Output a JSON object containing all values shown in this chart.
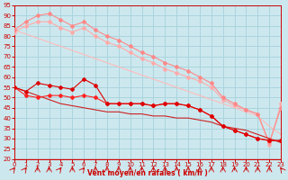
{
  "bg_color": "#cce8ee",
  "grid_color": "#aad4dd",
  "xlabel": "Vent moyen/en rafales ( km/h )",
  "xlabel_color": "#cc0000",
  "tick_color": "#cc0000",
  "xmin": 0,
  "xmax": 23,
  "ymin": 20,
  "ymax": 95,
  "xticks": [
    0,
    1,
    2,
    3,
    4,
    5,
    6,
    7,
    8,
    9,
    10,
    11,
    12,
    13,
    14,
    15,
    16,
    17,
    18,
    19,
    20,
    21,
    22,
    23
  ],
  "yticks": [
    20,
    25,
    30,
    35,
    40,
    45,
    50,
    55,
    60,
    65,
    70,
    75,
    80,
    85,
    90,
    95
  ],
  "line_light1_x": [
    0,
    1,
    2,
    3,
    4,
    5,
    6,
    7,
    8,
    9,
    10,
    11,
    12,
    13,
    14,
    15,
    16,
    17,
    18,
    19,
    20,
    21,
    22,
    23
  ],
  "line_light1_y": [
    83,
    87,
    90,
    91,
    88,
    85,
    87,
    83,
    80,
    78,
    75,
    72,
    70,
    67,
    65,
    63,
    60,
    57,
    50,
    47,
    44,
    42,
    28,
    45
  ],
  "line_light1_color": "#ff8888",
  "line_light2_x": [
    0,
    1,
    2,
    3,
    4,
    5,
    6,
    7,
    8,
    9,
    10,
    11,
    12,
    13,
    14,
    15,
    16,
    17,
    18,
    19,
    20,
    21,
    22,
    23
  ],
  "line_light2_y": [
    82,
    85,
    87,
    87,
    84,
    82,
    84,
    80,
    77,
    75,
    72,
    69,
    67,
    64,
    62,
    60,
    58,
    55,
    49,
    46,
    44,
    42,
    27,
    47
  ],
  "line_light2_color": "#ffaaaa",
  "line_trend1_x": [
    0,
    1,
    2,
    3,
    4,
    5,
    6,
    7,
    8,
    9,
    10,
    11,
    12,
    13,
    14,
    15,
    16,
    17,
    18,
    19,
    20,
    21,
    22,
    23
  ],
  "line_trend1_y": [
    83,
    81,
    79,
    77,
    75,
    73,
    71,
    69,
    67,
    65,
    63,
    61,
    59,
    57,
    55,
    53,
    51,
    49,
    47,
    45,
    43,
    41,
    36,
    32
  ],
  "line_trend1_color": "#ffbbbb",
  "line_trend2_x": [
    0,
    1,
    2,
    3,
    4,
    5,
    6,
    7,
    8,
    9,
    10,
    11,
    12,
    13,
    14,
    15,
    16,
    17,
    18,
    19,
    20,
    21,
    22,
    23
  ],
  "line_trend2_y": [
    55,
    53,
    51,
    49,
    47,
    46,
    45,
    44,
    43,
    43,
    42,
    42,
    41,
    41,
    40,
    40,
    39,
    38,
    36,
    35,
    34,
    32,
    30,
    28
  ],
  "line_trend2_color": "#cc2222",
  "line_red1_x": [
    0,
    1,
    2,
    3,
    4,
    5,
    6,
    7,
    8,
    9,
    10,
    11,
    12,
    13,
    14,
    15,
    16,
    17,
    18,
    19,
    20,
    21,
    22,
    23
  ],
  "line_red1_y": [
    55,
    53,
    57,
    56,
    55,
    54,
    59,
    56,
    47,
    47,
    47,
    47,
    46,
    47,
    47,
    46,
    44,
    41,
    36,
    34,
    32,
    30,
    29,
    29
  ],
  "line_red1_color": "#dd0000",
  "line_red2_x": [
    0,
    1,
    2,
    3,
    4,
    5,
    6,
    7,
    8,
    9,
    10,
    11,
    12,
    13,
    14,
    15,
    16,
    17,
    18,
    19,
    20,
    21,
    22,
    23
  ],
  "line_red2_y": [
    55,
    51,
    50,
    51,
    51,
    50,
    51,
    50,
    47,
    47,
    47,
    47,
    46,
    47,
    47,
    46,
    44,
    41,
    36,
    34,
    32,
    30,
    29,
    29
  ],
  "line_red2_color": "#ff2222",
  "arrow_angles_deg": [
    45,
    45,
    0,
    0,
    45,
    0,
    45,
    0,
    0,
    0,
    0,
    0,
    0,
    0,
    0,
    0,
    0,
    0,
    0,
    0,
    0,
    0,
    0,
    315
  ]
}
